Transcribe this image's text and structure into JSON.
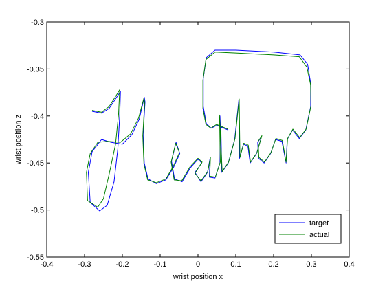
{
  "chart_data": {
    "type": "line",
    "xlabel": "wrist position x",
    "ylabel": "wrist position z",
    "xlim": [
      -0.4,
      0.4
    ],
    "xticks": [
      -0.4,
      -0.3,
      -0.2,
      -0.1,
      0,
      0.1,
      0.2,
      0.3,
      0.4
    ],
    "ylim": [
      -0.55,
      -0.3
    ],
    "yticks": [
      -0.55,
      -0.5,
      -0.45,
      -0.4,
      -0.35,
      -0.3
    ],
    "legend": "lower right",
    "series": [
      {
        "name": "target",
        "color": "#0000ff",
        "x": [
          -0.28,
          -0.255,
          -0.235,
          -0.215,
          -0.205,
          -0.207,
          -0.212,
          -0.222,
          -0.24,
          -0.26,
          -0.285,
          -0.29,
          -0.28,
          -0.255,
          -0.23,
          -0.2,
          -0.175,
          -0.155,
          -0.142,
          -0.14,
          -0.145,
          -0.142,
          -0.132,
          -0.11,
          -0.085,
          -0.065,
          -0.048,
          -0.058,
          -0.07,
          -0.062,
          -0.042,
          -0.02,
          0,
          0.01,
          -0.008,
          0.008,
          0.025,
          0.032,
          0.03,
          0.045,
          0.058,
          0.06,
          0.063,
          0.08,
          0.097,
          0.108,
          0.11,
          0.12,
          0.132,
          0.138,
          0.155,
          0.168,
          0.158,
          0.16,
          0.175,
          0.192,
          0.205,
          0.222,
          0.233,
          0.236,
          0.25,
          0.268,
          0.285,
          0.298,
          0.298,
          0.29,
          0.27,
          0.2,
          0.1,
          0.045,
          0.022,
          0.014,
          0.014,
          0.022,
          0.035,
          0.05,
          0.08
        ],
        "values": [
          -0.395,
          -0.397,
          -0.392,
          -0.38,
          -0.374,
          -0.4,
          -0.435,
          -0.47,
          -0.495,
          -0.501,
          -0.492,
          -0.46,
          -0.438,
          -0.425,
          -0.428,
          -0.43,
          -0.42,
          -0.403,
          -0.38,
          -0.385,
          -0.42,
          -0.45,
          -0.467,
          -0.472,
          -0.468,
          -0.455,
          -0.44,
          -0.428,
          -0.448,
          -0.467,
          -0.47,
          -0.455,
          -0.446,
          -0.45,
          -0.46,
          -0.47,
          -0.46,
          -0.445,
          -0.465,
          -0.466,
          -0.45,
          -0.4,
          -0.46,
          -0.45,
          -0.425,
          -0.383,
          -0.445,
          -0.43,
          -0.432,
          -0.45,
          -0.44,
          -0.422,
          -0.428,
          -0.445,
          -0.45,
          -0.44,
          -0.425,
          -0.427,
          -0.45,
          -0.425,
          -0.415,
          -0.424,
          -0.415,
          -0.39,
          -0.365,
          -0.345,
          -0.335,
          -0.332,
          -0.33,
          -0.33,
          -0.338,
          -0.36,
          -0.39,
          -0.408,
          -0.413,
          -0.41,
          -0.415
        ]
      },
      {
        "name": "actual",
        "color": "#008000",
        "x": [
          -0.28,
          -0.255,
          -0.235,
          -0.216,
          -0.207,
          -0.21,
          -0.218,
          -0.235,
          -0.25,
          -0.265,
          -0.292,
          -0.295,
          -0.285,
          -0.265,
          -0.24,
          -0.205,
          -0.178,
          -0.157,
          -0.143,
          -0.141,
          -0.146,
          -0.143,
          -0.133,
          -0.11,
          -0.085,
          -0.066,
          -0.049,
          -0.059,
          -0.071,
          -0.063,
          -0.043,
          -0.021,
          0,
          0.011,
          -0.008,
          0.008,
          0.026,
          0.033,
          0.031,
          0.046,
          0.059,
          0.057,
          0.064,
          0.081,
          0.098,
          0.109,
          0.111,
          0.121,
          0.133,
          0.139,
          0.156,
          0.169,
          0.159,
          0.161,
          0.176,
          0.193,
          0.206,
          0.223,
          0.233,
          0.237,
          0.251,
          0.269,
          0.286,
          0.299,
          0.298,
          0.288,
          0.268,
          0.2,
          0.1,
          0.045,
          0.021,
          0.013,
          0.013,
          0.021,
          0.034,
          0.049,
          0.079
        ],
        "values": [
          -0.394,
          -0.396,
          -0.39,
          -0.378,
          -0.372,
          -0.398,
          -0.43,
          -0.462,
          -0.488,
          -0.497,
          -0.49,
          -0.46,
          -0.44,
          -0.428,
          -0.427,
          -0.428,
          -0.419,
          -0.402,
          -0.381,
          -0.386,
          -0.421,
          -0.451,
          -0.468,
          -0.471,
          -0.467,
          -0.454,
          -0.439,
          -0.429,
          -0.449,
          -0.468,
          -0.469,
          -0.454,
          -0.445,
          -0.449,
          -0.461,
          -0.469,
          -0.459,
          -0.444,
          -0.464,
          -0.465,
          -0.449,
          -0.399,
          -0.459,
          -0.449,
          -0.424,
          -0.382,
          -0.444,
          -0.429,
          -0.431,
          -0.449,
          -0.439,
          -0.421,
          -0.427,
          -0.444,
          -0.449,
          -0.439,
          -0.424,
          -0.426,
          -0.449,
          -0.424,
          -0.414,
          -0.423,
          -0.414,
          -0.389,
          -0.367,
          -0.348,
          -0.337,
          -0.335,
          -0.333,
          -0.332,
          -0.34,
          -0.362,
          -0.392,
          -0.409,
          -0.413,
          -0.409,
          -0.414
        ]
      }
    ]
  }
}
